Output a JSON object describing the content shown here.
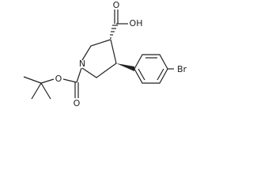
{
  "atoms": [
    "O",
    "OH",
    "N",
    "O",
    "O",
    "Br"
  ]
}
